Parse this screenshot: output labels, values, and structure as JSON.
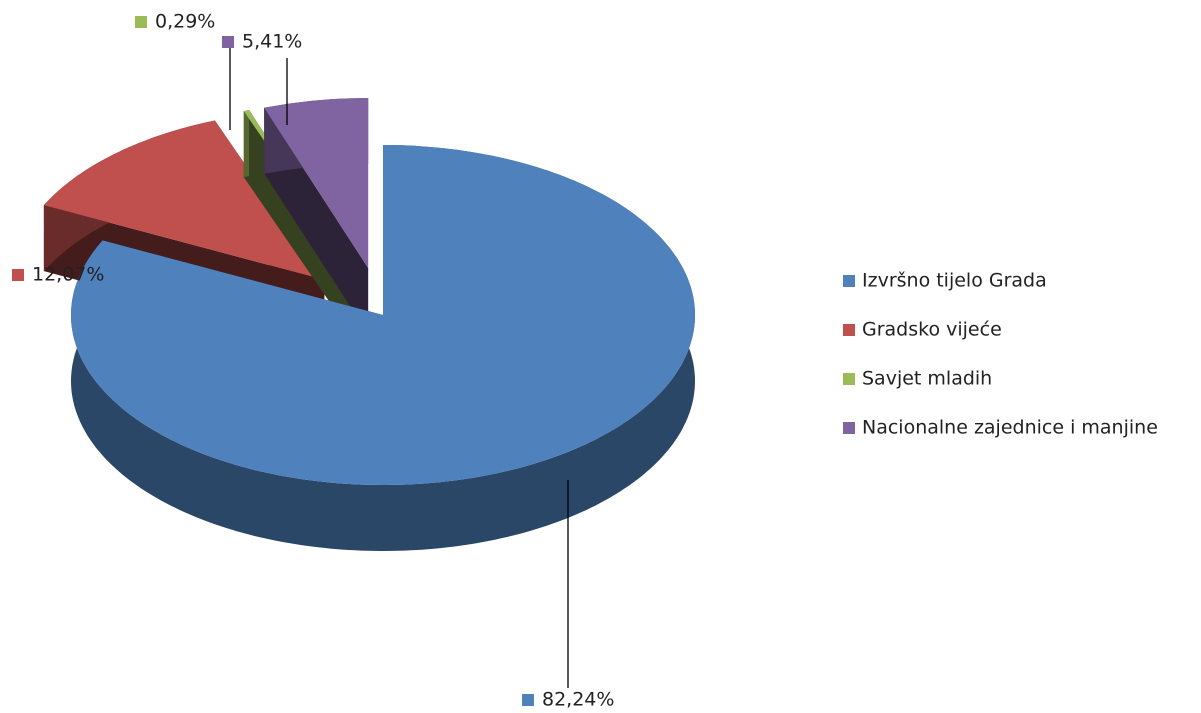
{
  "chart_data": {
    "type": "pie3d",
    "categories": [
      "Izvršno tijelo Grada",
      "Gradsko vijeće",
      "Savjet mladih",
      "Nacionalne zajednice i manjine"
    ],
    "values": [
      82.24,
      12.07,
      0.29,
      5.41
    ],
    "value_labels": [
      "82,24%",
      "12,07%",
      "0,29%",
      "5,41%"
    ],
    "colors": [
      "#4f81bd",
      "#c0504d",
      "#9bbb59",
      "#8064a2"
    ],
    "legend": "right"
  }
}
